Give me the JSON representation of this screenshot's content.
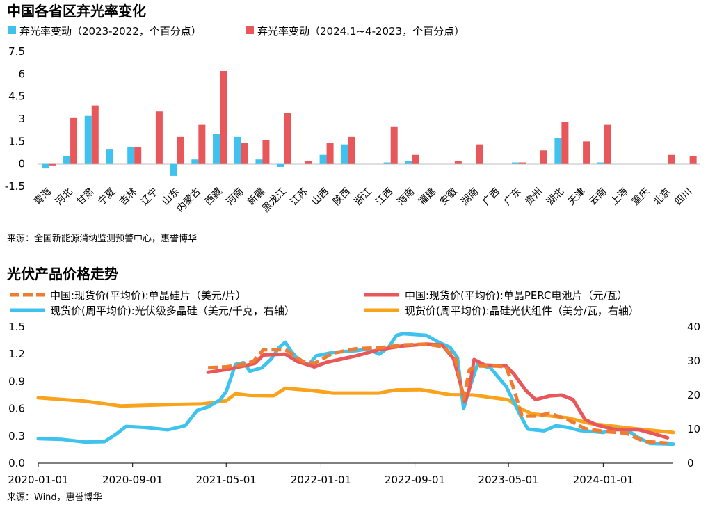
{
  "chart_data": [
    {
      "type": "bar",
      "title": "中国各省区弃光率变化",
      "source": "来源：全国新能源消纳监测预警中心，惠誉博华",
      "ylim": [
        -1.5,
        7.5
      ],
      "yticks": [
        "7.5",
        "6",
        "4.5",
        "3",
        "1.5",
        "0",
        "-1.5"
      ],
      "categories": [
        "青海",
        "河北",
        "甘肃",
        "宁夏",
        "吉林",
        "辽宁",
        "山东",
        "内蒙古",
        "西藏",
        "河南",
        "新疆",
        "黑龙江",
        "江苏",
        "山西",
        "陕西",
        "浙江",
        "江西",
        "海南",
        "福建",
        "安徽",
        "湖南",
        "广西",
        "广东",
        "贵州",
        "湖北",
        "天津",
        "云南",
        "上海",
        "重庆",
        "北京",
        "四川"
      ],
      "series": [
        {
          "name": "弃光率变动（2023-2022，个百分点）",
          "color": "#3fc3ee",
          "values": [
            -0.3,
            0.5,
            3.2,
            1.0,
            1.1,
            0.0,
            -0.8,
            0.3,
            2.0,
            1.8,
            0.3,
            -0.2,
            0.0,
            0.6,
            1.3,
            0.0,
            0.1,
            0.2,
            0.0,
            0.0,
            0.0,
            0.0,
            0.1,
            0.0,
            1.7,
            0.0,
            0.1,
            0.0,
            0.0,
            0.0,
            0.0
          ]
        },
        {
          "name": "弃光率变动（2024.1~4-2023，个百分点）",
          "color": "#e8585a",
          "values": [
            -0.1,
            3.1,
            3.9,
            0.0,
            1.1,
            3.5,
            1.8,
            2.6,
            6.2,
            1.4,
            1.6,
            3.4,
            0.2,
            1.4,
            1.8,
            0.0,
            2.5,
            0.6,
            0.0,
            0.2,
            1.3,
            0.0,
            0.1,
            0.9,
            2.8,
            1.5,
            2.6,
            0.0,
            0.0,
            0.6,
            0.5
          ]
        }
      ]
    },
    {
      "type": "line",
      "title": "光伏产品价格走势",
      "source": "来源：Wind，惠誉博华",
      "x_start": "2020-01-01",
      "x_end": "2024-06-30",
      "xticks": [
        "2020-01-01",
        "2020-09-01",
        "2021-05-01",
        "2022-01-01",
        "2022-09-01",
        "2023-05-01",
        "2024-01-01"
      ],
      "ylim_left": [
        0,
        1.5
      ],
      "yticks_left": [
        "1.5",
        "1.2",
        "0.9",
        "0.6",
        "0.3",
        "0.0"
      ],
      "ylim_right": [
        0,
        40
      ],
      "yticks_right": [
        "40",
        "30",
        "20",
        "10",
        "0"
      ],
      "series": [
        {
          "name": "中国:现货价(平均价):单晶硅片（美元/片）",
          "color": "#ee7d31",
          "axis": "left",
          "style": "dashed",
          "points": [
            [
              "2021-03-15",
              1.05
            ],
            [
              "2021-05-01",
              1.06
            ],
            [
              "2021-06-15",
              1.09
            ],
            [
              "2021-07-10",
              1.12
            ],
            [
              "2021-08-05",
              1.25
            ],
            [
              "2021-10-01",
              1.25
            ],
            [
              "2021-11-15",
              1.12
            ],
            [
              "2021-12-15",
              1.1
            ],
            [
              "2022-02-01",
              1.21
            ],
            [
              "2022-04-01",
              1.26
            ],
            [
              "2022-06-01",
              1.27
            ],
            [
              "2022-08-01",
              1.3
            ],
            [
              "2022-10-01",
              1.31
            ],
            [
              "2022-11-15",
              1.28
            ],
            [
              "2022-12-15",
              1.15
            ],
            [
              "2023-01-05",
              0.7
            ],
            [
              "2023-01-20",
              1.03
            ],
            [
              "2023-02-15",
              1.07
            ],
            [
              "2023-04-01",
              1.07
            ],
            [
              "2023-04-25",
              1.06
            ],
            [
              "2023-05-10",
              0.88
            ],
            [
              "2023-06-05",
              0.52
            ],
            [
              "2023-07-15",
              0.52
            ],
            [
              "2023-08-15",
              0.55
            ],
            [
              "2023-10-01",
              0.48
            ],
            [
              "2023-11-15",
              0.38
            ],
            [
              "2024-01-01",
              0.35
            ],
            [
              "2024-03-01",
              0.33
            ],
            [
              "2024-04-15",
              0.24
            ],
            [
              "2024-06-15",
              0.22
            ]
          ]
        },
        {
          "name": "中国:现货价(平均价):单晶PERC电池片（元/瓦）",
          "color": "#e8585a",
          "axis": "left",
          "style": "solid",
          "points": [
            [
              "2021-03-15",
              1.0
            ],
            [
              "2021-05-01",
              1.03
            ],
            [
              "2021-06-15",
              1.07
            ],
            [
              "2021-07-15",
              1.1
            ],
            [
              "2021-08-05",
              1.19
            ],
            [
              "2021-10-01",
              1.2
            ],
            [
              "2021-11-01",
              1.12
            ],
            [
              "2021-12-15",
              1.06
            ],
            [
              "2022-01-15",
              1.11
            ],
            [
              "2022-04-01",
              1.18
            ],
            [
              "2022-06-01",
              1.25
            ],
            [
              "2022-08-01",
              1.29
            ],
            [
              "2022-10-01",
              1.31
            ],
            [
              "2022-11-10",
              1.3
            ],
            [
              "2022-12-10",
              1.15
            ],
            [
              "2022-12-28",
              0.87
            ],
            [
              "2023-01-08",
              0.68
            ],
            [
              "2023-01-20",
              0.82
            ],
            [
              "2023-02-01",
              1.14
            ],
            [
              "2023-03-01",
              1.08
            ],
            [
              "2023-04-25",
              1.07
            ],
            [
              "2023-05-15",
              0.98
            ],
            [
              "2023-06-15",
              0.8
            ],
            [
              "2023-07-10",
              0.7
            ],
            [
              "2023-08-15",
              0.74
            ],
            [
              "2023-09-15",
              0.75
            ],
            [
              "2023-10-15",
              0.7
            ],
            [
              "2023-11-15",
              0.48
            ],
            [
              "2023-12-15",
              0.42
            ],
            [
              "2024-02-01",
              0.37
            ],
            [
              "2024-04-01",
              0.37
            ],
            [
              "2024-06-15",
              0.28
            ]
          ]
        },
        {
          "name": "现货价(周平均价):光伏级多晶硅（美元/千克，右轴）",
          "color": "#3fc3ee",
          "axis": "right",
          "style": "solid",
          "points": [
            [
              "2020-01-01",
              7.2
            ],
            [
              "2020-03-01",
              7.0
            ],
            [
              "2020-05-01",
              6.2
            ],
            [
              "2020-06-20",
              6.3
            ],
            [
              "2020-07-20",
              8.5
            ],
            [
              "2020-08-15",
              10.8
            ],
            [
              "2020-10-01",
              10.5
            ],
            [
              "2020-12-01",
              9.8
            ],
            [
              "2021-01-15",
              11.0
            ],
            [
              "2021-02-15",
              15.5
            ],
            [
              "2021-03-15",
              16.5
            ],
            [
              "2021-04-15",
              18.6
            ],
            [
              "2021-05-01",
              21.0
            ],
            [
              "2021-05-25",
              29.0
            ],
            [
              "2021-06-15",
              29.5
            ],
            [
              "2021-07-01",
              27.0
            ],
            [
              "2021-08-01",
              28.0
            ],
            [
              "2021-08-25",
              30.5
            ],
            [
              "2021-09-15",
              34.0
            ],
            [
              "2021-10-01",
              35.5
            ],
            [
              "2021-10-15",
              33.0
            ],
            [
              "2021-11-10",
              29.5
            ],
            [
              "2021-12-01",
              29.0
            ],
            [
              "2021-12-20",
              31.5
            ],
            [
              "2022-02-01",
              32.5
            ],
            [
              "2022-04-01",
              33.0
            ],
            [
              "2022-05-01",
              33.5
            ],
            [
              "2022-06-01",
              32.0
            ],
            [
              "2022-06-25",
              34.0
            ],
            [
              "2022-07-15",
              37.5
            ],
            [
              "2022-08-01",
              38.0
            ],
            [
              "2022-10-01",
              37.5
            ],
            [
              "2022-11-01",
              35.5
            ],
            [
              "2022-12-01",
              34.0
            ],
            [
              "2022-12-20",
              31.0
            ],
            [
              "2023-01-05",
              16.0
            ],
            [
              "2023-01-20",
              22.0
            ],
            [
              "2023-02-10",
              29.0
            ],
            [
              "2023-03-15",
              28.0
            ],
            [
              "2023-04-25",
              22.5
            ],
            [
              "2023-06-01",
              14.0
            ],
            [
              "2023-06-20",
              10.0
            ],
            [
              "2023-08-01",
              9.5
            ],
            [
              "2023-09-01",
              11.0
            ],
            [
              "2023-10-01",
              10.5
            ],
            [
              "2023-11-01",
              9.6
            ],
            [
              "2023-12-01",
              9.3
            ],
            [
              "2024-01-01",
              9.0
            ],
            [
              "2024-02-01",
              10.0
            ],
            [
              "2024-03-01",
              9.8
            ],
            [
              "2024-04-01",
              7.5
            ],
            [
              "2024-05-01",
              5.8
            ],
            [
              "2024-06-30",
              5.6
            ]
          ]
        },
        {
          "name": "现货价(周平均价):晶硅光伏组件（美分/瓦，右轴）",
          "color": "#f9a31c",
          "axis": "right",
          "style": "solid",
          "points": [
            [
              "2020-01-01",
              19.2
            ],
            [
              "2020-05-01",
              18.2
            ],
            [
              "2020-08-01",
              16.8
            ],
            [
              "2020-12-01",
              17.2
            ],
            [
              "2021-03-01",
              17.4
            ],
            [
              "2021-05-01",
              18.3
            ],
            [
              "2021-05-25",
              20.4
            ],
            [
              "2021-07-01",
              19.9
            ],
            [
              "2021-09-01",
              19.8
            ],
            [
              "2021-10-01",
              22.0
            ],
            [
              "2021-12-01",
              21.4
            ],
            [
              "2022-02-01",
              20.6
            ],
            [
              "2022-06-01",
              20.6
            ],
            [
              "2022-07-15",
              21.5
            ],
            [
              "2022-09-15",
              21.6
            ],
            [
              "2022-12-01",
              20.1
            ],
            [
              "2023-02-01",
              20.0
            ],
            [
              "2023-05-01",
              18.6
            ],
            [
              "2023-06-01",
              16.0
            ],
            [
              "2023-07-01",
              14.5
            ],
            [
              "2023-10-01",
              13.3
            ],
            [
              "2023-12-01",
              11.6
            ],
            [
              "2024-02-01",
              10.8
            ],
            [
              "2024-04-01",
              10.0
            ],
            [
              "2024-06-30",
              9.0
            ]
          ]
        }
      ]
    }
  ]
}
